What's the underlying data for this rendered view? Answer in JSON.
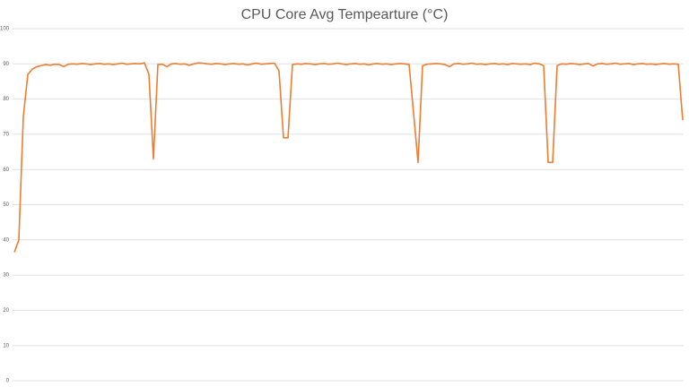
{
  "chart_data": {
    "type": "line",
    "title": "CPU Core Avg Tempearture (°C)",
    "color": "#ed7d31",
    "grid": true,
    "ylim": [
      0,
      100
    ],
    "yticks": [
      0,
      10,
      20,
      30,
      40,
      50,
      60,
      70,
      80,
      90,
      100
    ],
    "values": [
      36.5,
      40,
      75,
      87,
      88.5,
      89.2,
      89.5,
      89.8,
      89.6,
      89.9,
      89.8,
      89.2,
      89.9,
      90,
      89.9,
      90.1,
      90,
      89.8,
      90,
      90.1,
      89.9,
      90,
      89.8,
      90,
      90.2,
      89.9,
      90,
      90.1,
      90,
      90.3,
      87,
      63,
      89.8,
      89.9,
      89.2,
      90,
      90.1,
      89.9,
      90,
      89.6,
      90,
      90.3,
      90.2,
      90,
      89.9,
      90.1,
      90,
      89.8,
      90,
      90.1,
      89.9,
      90,
      89.7,
      90,
      90.2,
      89.9,
      90,
      90.1,
      90.2,
      88,
      69,
      69,
      89.8,
      90,
      89.9,
      90.1,
      90,
      89.8,
      90,
      90.1,
      89.9,
      90,
      90.2,
      90,
      89.8,
      90,
      90.1,
      89.9,
      90,
      89.7,
      90,
      90.1,
      89.9,
      90,
      89.8,
      90,
      90.1,
      90,
      89.8,
      76,
      62,
      89.5,
      89.9,
      90,
      90.1,
      90,
      89.8,
      89.2,
      90,
      90.1,
      89.9,
      90,
      90.2,
      89.9,
      90,
      89.8,
      90,
      90.1,
      89.9,
      90,
      89.8,
      90.1,
      90,
      89.9,
      90,
      89.8,
      90.2,
      90,
      89.5,
      62,
      62,
      89.5,
      90,
      89.9,
      90.1,
      90,
      89.8,
      90,
      90.1,
      89.4,
      90,
      90.1,
      89.9,
      90,
      90.2,
      89.9,
      90,
      90.1,
      89.8,
      90,
      90.1,
      89.9,
      90,
      89.8,
      90,
      90.1,
      89.9,
      90,
      89.9,
      74
    ]
  }
}
